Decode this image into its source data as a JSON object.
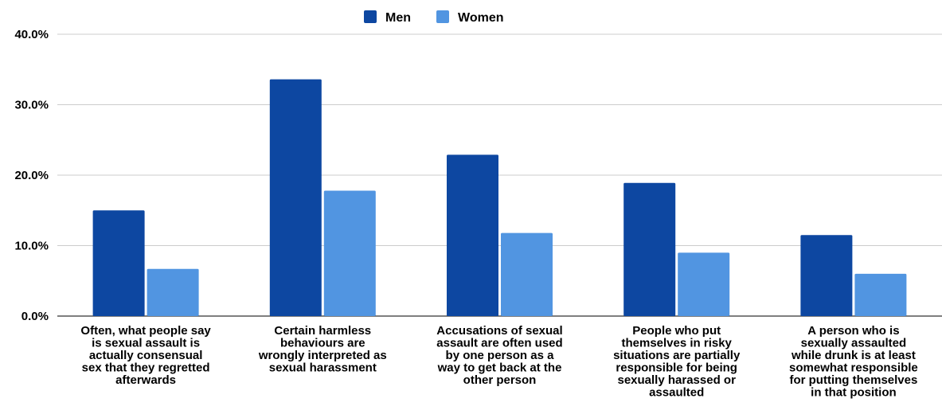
{
  "chart_data": {
    "type": "bar",
    "title": "",
    "xlabel": "",
    "ylabel": "",
    "ylim": [
      0,
      40
    ],
    "yticks": [
      "0.0%",
      "10.0%",
      "20.0%",
      "30.0%",
      "40.0%"
    ],
    "ytick_values": [
      0,
      10,
      20,
      30,
      40
    ],
    "grid": true,
    "legend_position": "top-center",
    "categories": [
      "Often, what people say is sexual assault is actually consensual sex that they regretted afterwards",
      "Certain harmless behaviours are wrongly interpreted as sexual harassment",
      "Accusations of sexual assault are often used by one person as a way to get back at the other person",
      "People who put themselves in risky situations are partially responsible for being sexually harassed or assaulted",
      "A person who is sexually assaulted while drunk is at least somewhat responsible for putting themselves in that position"
    ],
    "category_lines": [
      [
        "Often, what people say",
        "is sexual assault is",
        "actually consensual",
        "sex that they regretted",
        "afterwards"
      ],
      [
        "Certain harmless",
        "behaviours are",
        "wrongly interpreted as",
        "sexual harassment"
      ],
      [
        "Accusations of sexual",
        "assault are often used",
        "by one person as a",
        "way to get back at the",
        "other person"
      ],
      [
        "People who put",
        "themselves in risky",
        "situations are partially",
        "responsible for being",
        "sexually harassed or",
        "assaulted"
      ],
      [
        "A person who is",
        "sexually assaulted",
        "while drunk is at least",
        "somewhat responsible",
        "for putting themselves",
        "in that position"
      ]
    ],
    "series": [
      {
        "name": "Men",
        "color": "#0d47a1",
        "values": [
          15.0,
          33.6,
          22.9,
          18.9,
          11.5
        ]
      },
      {
        "name": "Women",
        "color": "#5195e1",
        "values": [
          6.7,
          17.8,
          11.8,
          9.0,
          6.0
        ]
      }
    ]
  }
}
